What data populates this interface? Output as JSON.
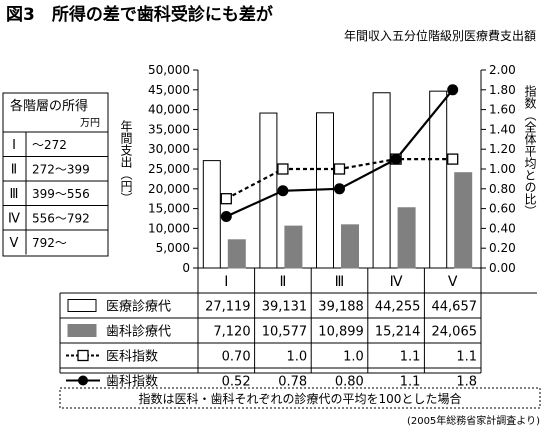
{
  "header": {
    "title": "図3　所得の差で歯科受診にも差が",
    "subtitle": "年間収入五分位階級別医療費支出額"
  },
  "income_box": {
    "title": "各階層の所得",
    "unit": "万円",
    "rows": [
      {
        "class": "Ⅰ",
        "range": "～272"
      },
      {
        "class": "Ⅱ",
        "range": "272～399"
      },
      {
        "class": "Ⅲ",
        "range": "399～556"
      },
      {
        "class": "Ⅳ",
        "range": "556～792"
      },
      {
        "class": "Ⅴ",
        "range": "792～"
      }
    ]
  },
  "table": {
    "rows": [
      {
        "label": "医療診療代",
        "values": [
          "27,119",
          "39,131",
          "39,188",
          "44,255",
          "44,657"
        ]
      },
      {
        "label": "歯科診療代",
        "values": [
          "7,120",
          "10,577",
          "10,899",
          "15,214",
          "24,065"
        ]
      },
      {
        "label": "医科指数",
        "values": [
          "0.70",
          "1.0",
          "1.0",
          "1.1",
          "1.1"
        ]
      },
      {
        "label": "歯科指数",
        "values": [
          "0.52",
          "0.78",
          "0.80",
          "1.1",
          "1.8"
        ]
      }
    ]
  },
  "note": "指数は医科・歯科それぞれの診療代の平均を100とした場合",
  "source": "(2005年総務省家計調査より)",
  "colors": {
    "dental_bar": "#808080",
    "medical_bar": "#ffffff",
    "line": "#000000"
  },
  "chart_data": {
    "type": "bar",
    "categories": [
      "Ⅰ",
      "Ⅱ",
      "Ⅲ",
      "Ⅳ",
      "Ⅴ"
    ],
    "ylabel": "年間支出（円）",
    "y2label": "指数（全体平均との比）",
    "ylim": [
      0,
      50000
    ],
    "y2lim": [
      0,
      2.0
    ],
    "yticks": [
      "0",
      "5,000",
      "10,000",
      "15,000",
      "20,000",
      "25,000",
      "30,000",
      "35,000",
      "40,000",
      "45,000",
      "50,000"
    ],
    "y2ticks": [
      "0.00",
      "0.20",
      "0.40",
      "0.60",
      "0.80",
      "1.00",
      "1.20",
      "1.40",
      "1.60",
      "1.80",
      "2.00"
    ],
    "series": [
      {
        "name": "医療診療代",
        "kind": "bar",
        "axis": "left",
        "values": [
          27119,
          39131,
          39188,
          44255,
          44657
        ]
      },
      {
        "name": "歯科診療代",
        "kind": "bar",
        "axis": "left",
        "values": [
          7120,
          10577,
          10899,
          15214,
          24065
        ]
      },
      {
        "name": "医科指数",
        "kind": "line",
        "axis": "right",
        "style": "dashed-square",
        "values": [
          0.7,
          1.0,
          1.0,
          1.1,
          1.1
        ]
      },
      {
        "name": "歯科指数",
        "kind": "line",
        "axis": "right",
        "style": "solid-circle",
        "values": [
          0.52,
          0.78,
          0.8,
          1.1,
          1.8
        ]
      }
    ],
    "grid": false,
    "legend": "table-below"
  }
}
